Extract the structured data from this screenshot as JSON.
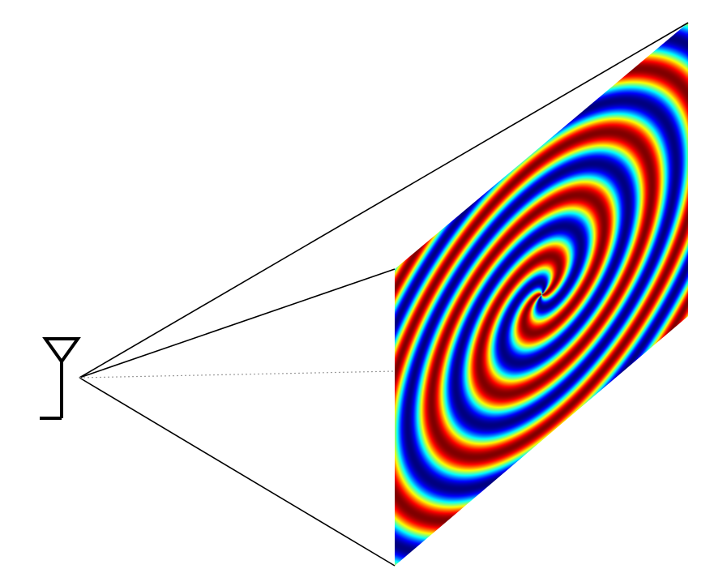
{
  "diagram": {
    "type": "antenna-beam-projection",
    "antenna": {
      "icon": "antenna-icon",
      "color": "#000000"
    },
    "beam": {
      "line_color": "#000000",
      "axis_style": "dotted",
      "axis_color": "#9a9a9a"
    },
    "field_plane": {
      "pattern": "two-arm-spiral-phase",
      "colormap": "jet",
      "colormap_stops": [
        "#00007f",
        "#0000ff",
        "#00a0ff",
        "#22ffdd",
        "#aaff55",
        "#ffee00",
        "#ff7700",
        "#ff0000",
        "#7f0000"
      ]
    }
  }
}
